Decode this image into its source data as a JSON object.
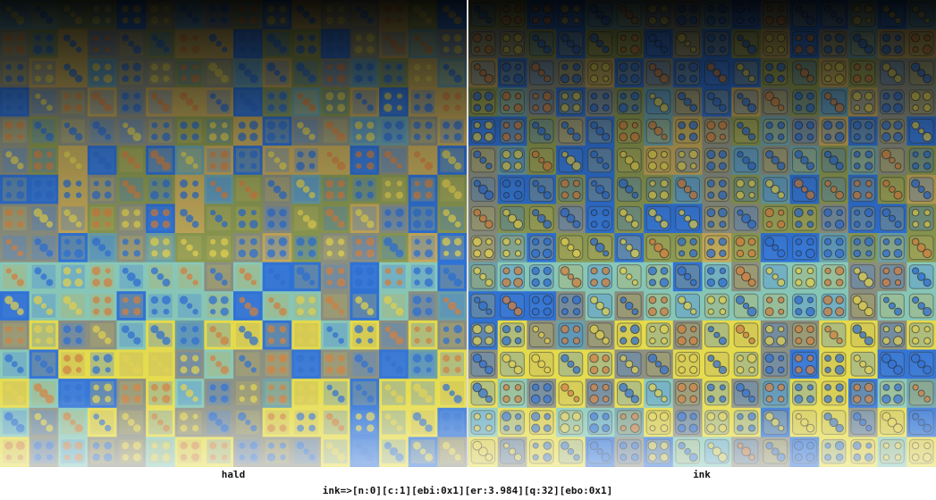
{
  "panels": [
    {
      "label": "hald"
    },
    {
      "label": "ink"
    }
  ],
  "status": "ink=>[n:0][c:1][ebi:0x1][er:3.984][q:32][ebo:0x1]"
}
